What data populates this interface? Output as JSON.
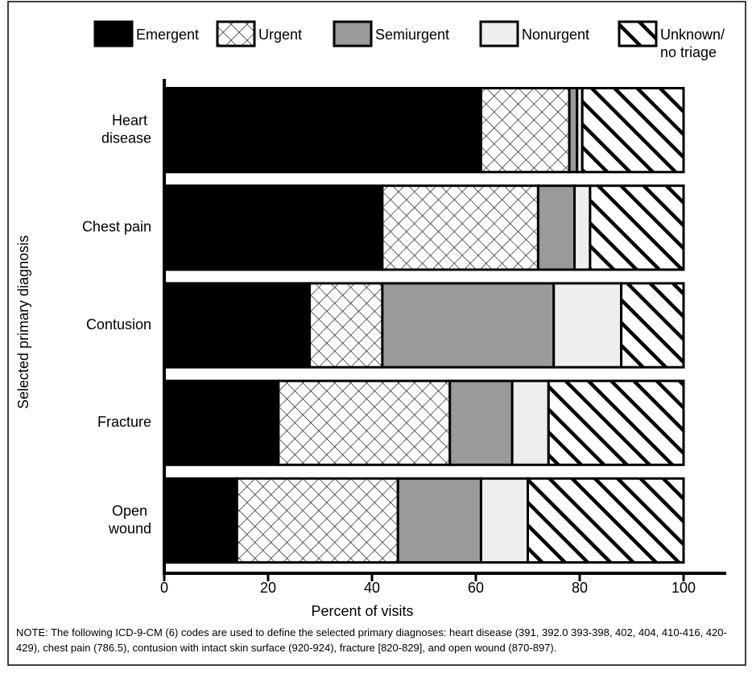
{
  "chart_data": {
    "type": "stacked-barh",
    "categories": [
      "Heart\ndisease",
      "Chest pain",
      "Contusion",
      "Fracture",
      "Open\nwound"
    ],
    "series": [
      {
        "name": "Emergent",
        "color": "#000000",
        "pattern": "solid",
        "values": [
          61,
          42,
          28,
          22,
          14
        ]
      },
      {
        "name": "Urgent",
        "color": "#ffffff",
        "pattern": "crosshatch",
        "values": [
          17,
          30,
          14,
          33,
          31
        ]
      },
      {
        "name": "Semiurgent",
        "color": "#9a9a9a",
        "pattern": "solid",
        "values": [
          1.5,
          7,
          33,
          12,
          16
        ]
      },
      {
        "name": "Nonurgent",
        "color": "#eeeeee",
        "pattern": "solid",
        "values": [
          1,
          3,
          13,
          7,
          9
        ]
      },
      {
        "name": "Unknown/\nno triage",
        "color": "#ffffff",
        "pattern": "diagonal",
        "values": [
          19.5,
          18,
          12,
          26,
          30
        ]
      }
    ],
    "xlabel": "Percent of visits",
    "ylabel": "Selected primary diagnosis",
    "xlim": [
      0,
      100
    ],
    "xticks": [
      0,
      20,
      40,
      60,
      80,
      100
    ],
    "legend": "top",
    "note": "NOTE: The following ICD-9-CM (6) codes are used to define the selected primary diagnoses:  heart disease (391, 392.0 393-398, 402, 404, 410-416, 420-429), chest pain (786.5), contusion with intact skin surface (920-924), fracture [820-829], and open wound (870-897)."
  }
}
